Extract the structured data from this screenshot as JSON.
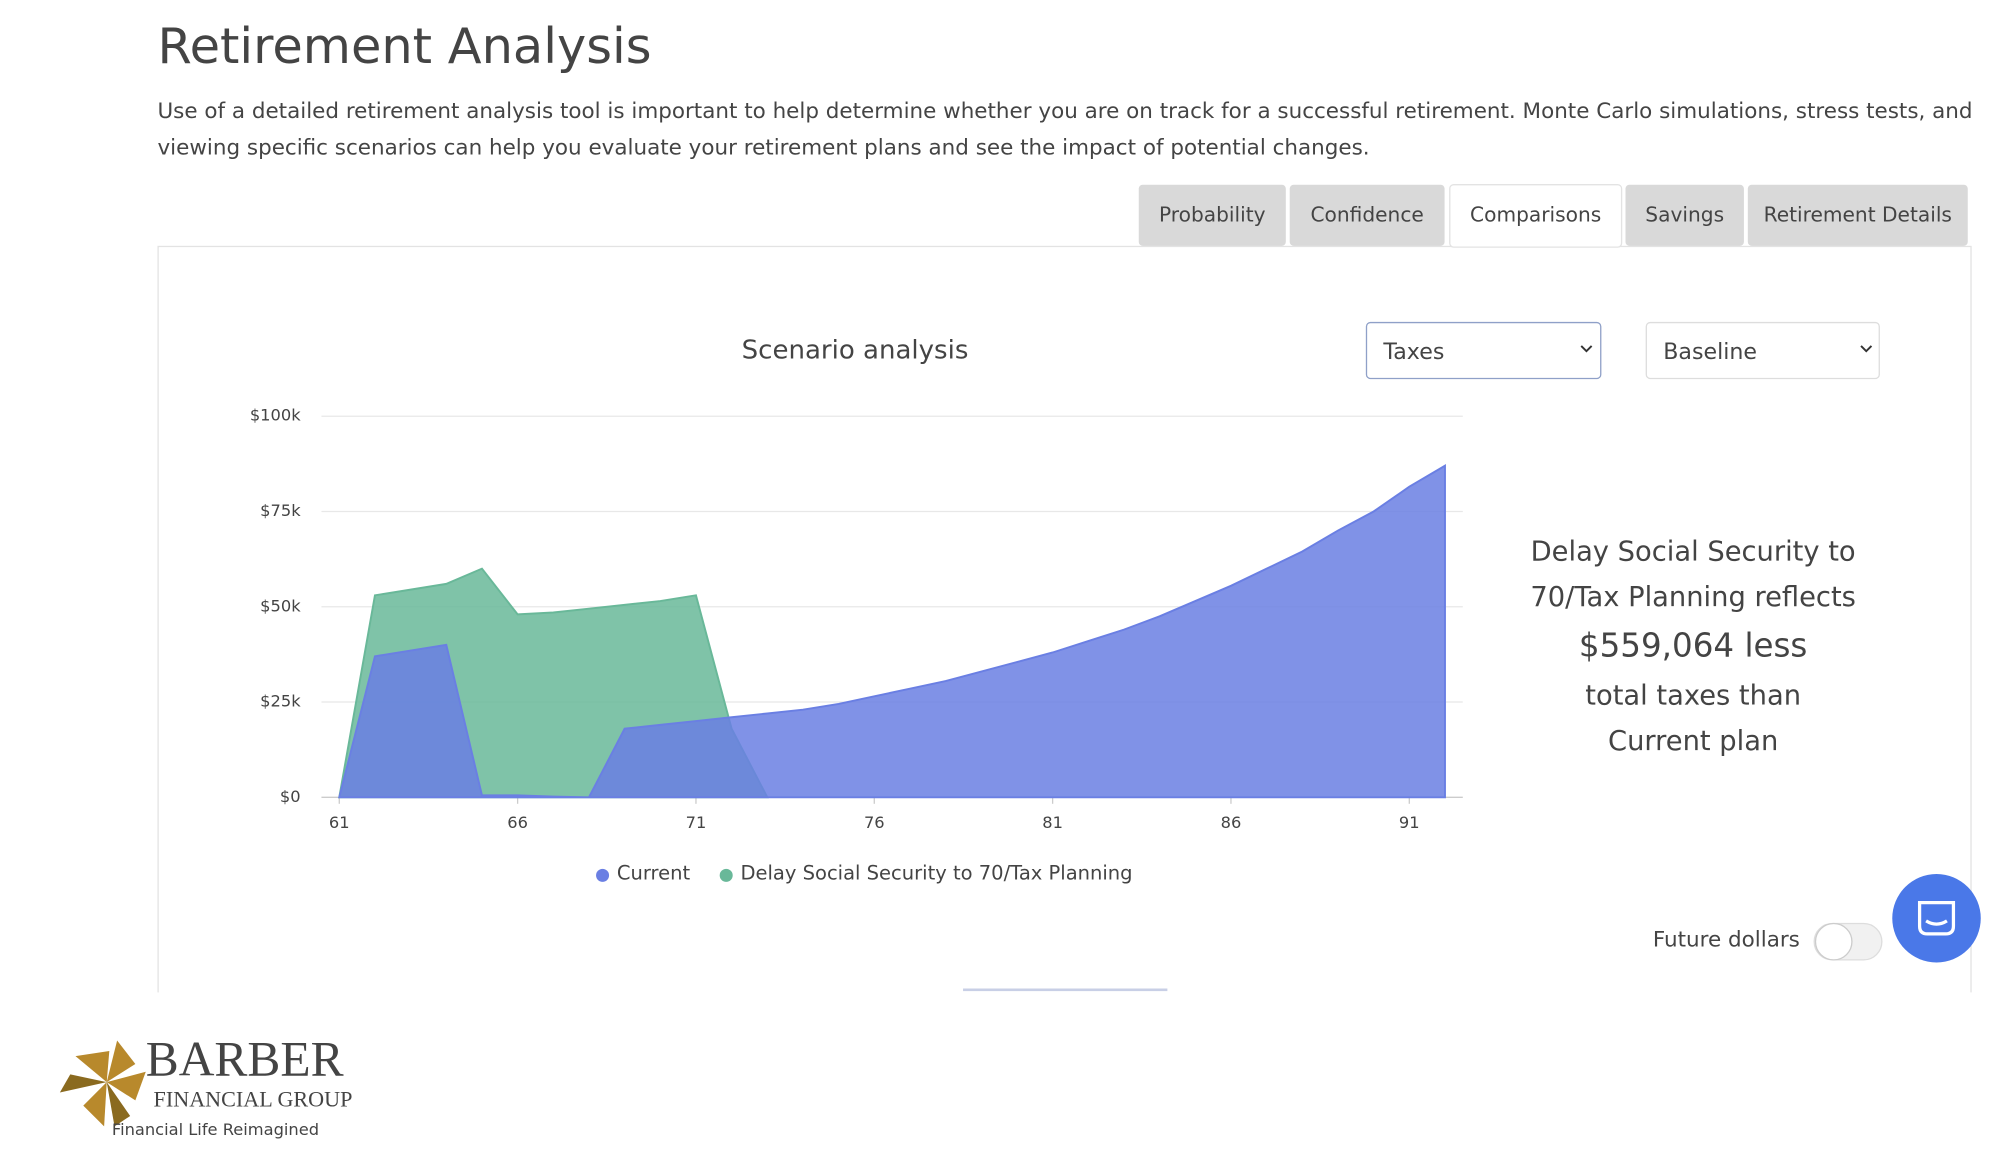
{
  "header": {
    "title": "Retirement Analysis",
    "description_lines": [
      "Use of a detailed retirement analysis tool is important to help determine whether you are on track for a successful retirement. Monte Carlo simulations, stress tests, and",
      "viewing specific scenarios can help you evaluate your retirement plans and see the impact of potential changes."
    ]
  },
  "tabs": [
    "Probability",
    "Confidence",
    "Comparisons",
    "Savings",
    "Retirement Details"
  ],
  "dropdowns": [
    "Taxes",
    "Baseline"
  ],
  "chart_data": {
    "type": "area",
    "title": "Scenario analysis",
    "x": [
      61,
      62,
      63,
      64,
      65,
      66,
      67,
      68,
      69,
      70,
      71,
      72,
      73,
      74,
      75,
      76,
      77,
      78,
      79,
      80,
      81,
      82,
      83,
      84,
      85,
      86,
      87,
      88,
      89,
      90,
      91,
      92
    ],
    "series": [
      {
        "name": "Delay Social Security to 70/Tax Planning",
        "color": "#69b899",
        "values": [
          0,
          53000,
          54500,
          56000,
          60000,
          48000,
          48500,
          49500,
          50500,
          51500,
          53000,
          18000,
          0,
          null,
          null,
          null,
          null,
          null,
          null,
          null,
          null,
          null,
          null,
          null,
          null,
          null,
          null,
          null,
          null,
          null,
          null,
          null
        ]
      },
      {
        "name": "Current",
        "color": "#6a7fe3",
        "values": [
          0,
          37000,
          38500,
          40000,
          500,
          500,
          200,
          0,
          18000,
          19000,
          20000,
          21000,
          22000,
          23000,
          24500,
          26500,
          28500,
          30500,
          33000,
          35500,
          38000,
          41000,
          44000,
          47500,
          51500,
          55500,
          60000,
          64500,
          70000,
          75000,
          81500,
          87000
        ]
      }
    ],
    "xlim": [
      60.5,
      92.5
    ],
    "xticks": [
      61,
      66,
      71,
      76,
      81,
      86,
      91
    ],
    "ylim": [
      0,
      100000
    ],
    "yticks": [
      {
        "value": 0,
        "label": "$0"
      },
      {
        "value": 25000,
        "label": "$25k"
      },
      {
        "value": 50000,
        "label": "$50k"
      },
      {
        "value": 75000,
        "label": "$75k"
      },
      {
        "value": 100000,
        "label": "$100k"
      }
    ],
    "grid": true
  },
  "summary": [
    "Delay Social Security to",
    "70/Tax Planning reflects",
    "$559,064 less",
    "total taxes than",
    "Current plan"
  ],
  "toggle": {
    "label": "Future dollars"
  },
  "logo": {
    "name": "BARBER",
    "subtitle": "FINANCIAL GROUP",
    "tagline": "Financial Life Reimagined"
  }
}
